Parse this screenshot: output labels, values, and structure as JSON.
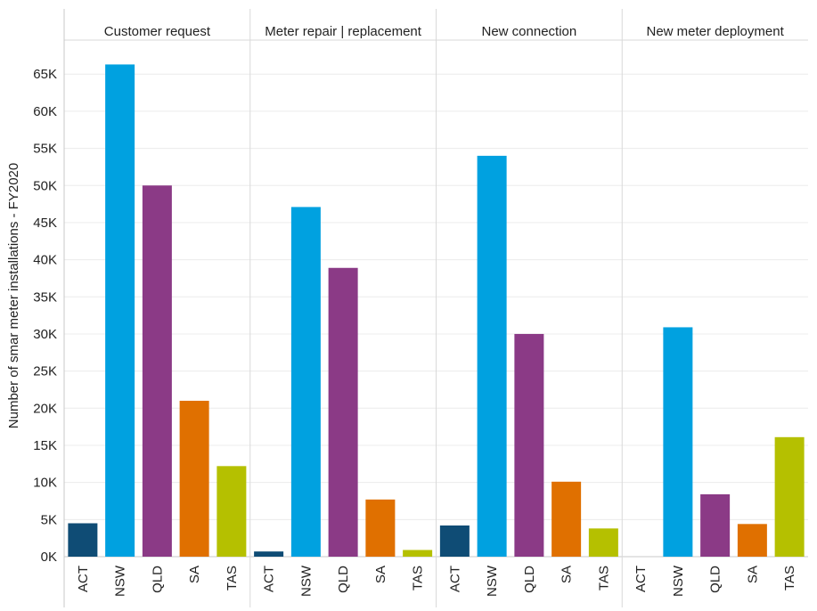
{
  "chart_data": {
    "type": "bar",
    "ylabel": "Number of smar meter installations - FY2020",
    "ylim": [
      0,
      66000
    ],
    "yticks": [
      {
        "value": 0,
        "label": "0K"
      },
      {
        "value": 5000,
        "label": "5K"
      },
      {
        "value": 10000,
        "label": "10K"
      },
      {
        "value": 15000,
        "label": "15K"
      },
      {
        "value": 20000,
        "label": "20K"
      },
      {
        "value": 25000,
        "label": "25K"
      },
      {
        "value": 30000,
        "label": "30K"
      },
      {
        "value": 35000,
        "label": "35K"
      },
      {
        "value": 40000,
        "label": "40K"
      },
      {
        "value": 45000,
        "label": "45K"
      },
      {
        "value": 50000,
        "label": "50K"
      },
      {
        "value": 55000,
        "label": "55K"
      },
      {
        "value": 60000,
        "label": "60K"
      },
      {
        "value": 65000,
        "label": "65K"
      }
    ],
    "categories": [
      "ACT",
      "NSW",
      "QLD",
      "SA",
      "TAS"
    ],
    "colors": {
      "ACT": "#0f4c75",
      "NSW": "#00a1e0",
      "QLD": "#8b3a86",
      "SA": "#e07000",
      "TAS": "#b5c000"
    },
    "panels": [
      {
        "title": "Customer request",
        "values": [
          4500,
          66300,
          50000,
          21000,
          12200
        ]
      },
      {
        "title": "Meter repair | replacement",
        "values": [
          700,
          47100,
          38900,
          7700,
          900
        ]
      },
      {
        "title": "New connection",
        "values": [
          4200,
          54000,
          30000,
          10100,
          3800
        ]
      },
      {
        "title": "New meter deployment",
        "values": [
          0,
          30900,
          8400,
          4400,
          16100
        ]
      }
    ]
  }
}
